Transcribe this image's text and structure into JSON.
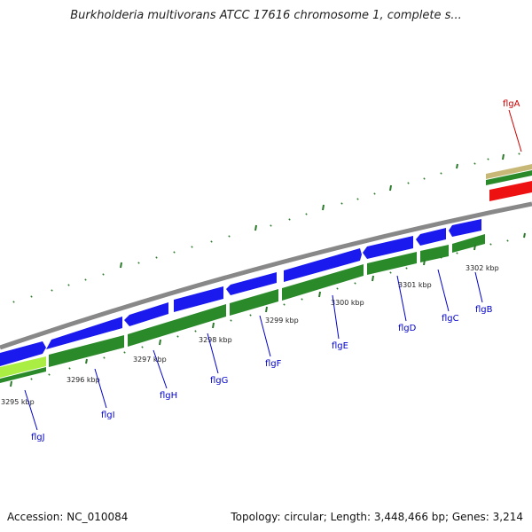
{
  "title": "Burkholderia multivorans ATCC 17616 chromosome 1, complete s...",
  "footer": {
    "accession": "Accession: NC_010084",
    "summary": "Topology: circular; Length: 3,448,466 bp; Genes: 3,214"
  },
  "kbp_labels": [
    "3295 kbp",
    "3296 kbp",
    "3297 kbp",
    "3298 kbp",
    "3299 kbp",
    "3300 kbp",
    "3301 kbp",
    "3302 kbp"
  ],
  "genes": [
    "flgJ",
    "flgI",
    "flgH",
    "flgG",
    "flgF",
    "flgE",
    "flgD",
    "flgC",
    "flgB",
    "flgA"
  ],
  "colors": {
    "cds_blue": "#1a1aee",
    "cds_green": "#2a8a2a",
    "highlight_red": "#ee1111",
    "tan": "#c8b878",
    "lime": "#aaee44",
    "backbone": "#888888",
    "tick": "#2a7a2a"
  }
}
